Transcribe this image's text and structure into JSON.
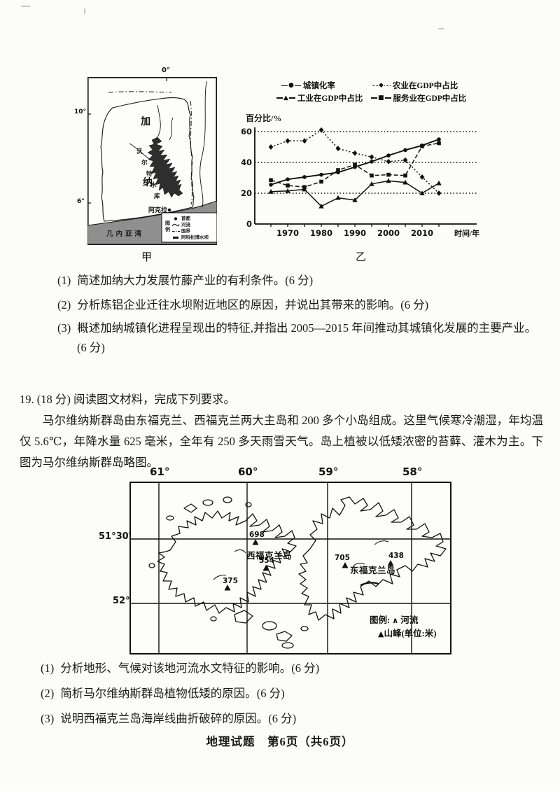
{
  "ghana_map": {
    "caption": "甲",
    "meridian_top": "0°",
    "lat_10": "10°",
    "lat_6": "6°",
    "country_char_1": "加",
    "country_char_2": "纳",
    "lake_chars": [
      "沃",
      "尔",
      "特",
      "水",
      "库"
    ],
    "capital": "阿克拉",
    "gulf": "几内亚湾",
    "legend_title_chars": [
      "图",
      "例"
    ],
    "legend": [
      {
        "symbol": "capital-dot",
        "label": "首都"
      },
      {
        "symbol": "river-line",
        "label": "河流"
      },
      {
        "symbol": "dashdot-line",
        "label": "国界"
      },
      {
        "symbol": "dam-bar",
        "label": "阿科松博水坝"
      }
    ]
  },
  "chart": {
    "caption": "乙",
    "y_axis_title": "百分比/%"
  },
  "chart_data": {
    "type": "line",
    "x": [
      1965,
      1970,
      1975,
      1980,
      1985,
      1990,
      1995,
      2000,
      2005,
      2010,
      2015
    ],
    "x_ticks": [
      1970,
      1980,
      1990,
      2000,
      2010
    ],
    "xlabel": "时间/年",
    "ylabel": "百分比/%",
    "ylim": [
      0,
      65
    ],
    "yticks": [
      0,
      20,
      40,
      60
    ],
    "grid": "dotted horizontal lines at 20,40,60",
    "legend_position": "top",
    "series": [
      {
        "name": "城镇化率",
        "marker": "circle",
        "marker_glyph": "●",
        "line": "solid",
        "values": [
          25.5,
          29,
          30.5,
          32,
          33.5,
          37,
          40.5,
          44.5,
          48,
          51,
          55
        ]
      },
      {
        "name": "农业在GDP中占比",
        "marker": "diamond",
        "marker_glyph": "◆",
        "line": "dotted",
        "values": [
          50,
          54,
          54,
          61,
          49,
          46,
          43.5,
          40.5,
          41.5,
          30.5,
          20
        ]
      },
      {
        "name": "工业在GDP中占比",
        "marker": "triangle",
        "marker_glyph": "▲",
        "line": "solid",
        "values": [
          21,
          21.5,
          22.5,
          11.5,
          17,
          15.5,
          26,
          28,
          27,
          20,
          26.5
        ]
      },
      {
        "name": "服务业在GDP中占比",
        "marker": "square",
        "marker_glyph": "■",
        "line": "dashed",
        "values": [
          28.5,
          25,
          24,
          27.5,
          35,
          38.5,
          31.5,
          32,
          31.5,
          50.5,
          52.5
        ]
      }
    ]
  },
  "q18": {
    "items": [
      {
        "num": "(1)",
        "text": "简述加纳大力发展竹藤产业的有利条件。(6 分)"
      },
      {
        "num": "(2)",
        "text": "分析炼铝企业迁往水坝附近地区的原因，并说出其带来的影响。(6 分)"
      },
      {
        "num": "(3)",
        "text": "概述加纳城镇化进程呈现出的特征,并指出 2005—2015 年间推动其城镇化发展的主要产业。",
        "score": "(6 分)"
      }
    ]
  },
  "q19": {
    "header": "19. (18 分) 阅读图文材料，完成下列要求。",
    "paragraph": "马尔维纳斯群岛由东福克兰、西福克兰两大主岛和 200 多个小岛组成。这里气候寒冷潮湿，年均温仅 5.6℃，年降水量 625 毫米，全年有 250 多天雨雪天气。岛上植被以低矮浓密的苔藓、灌木为主。下图为马尔维纳斯群岛略图。",
    "items": [
      {
        "num": "(1)",
        "text": "分析地形、气候对该地河流水文特征的影响。(6 分)"
      },
      {
        "num": "(2)",
        "text": "简析马尔维纳斯群岛植物低矮的原因。(6 分)"
      },
      {
        "num": "(3)",
        "text": "说明西福克兰岛海岸线曲折破碎的原因。(6 分)"
      }
    ]
  },
  "falkland_map": {
    "lon_labels": [
      "61°",
      "60°",
      "59°",
      "58°"
    ],
    "lat_labels": [
      "51°30′",
      "52°"
    ],
    "islands": [
      {
        "name": "西福克兰岛"
      },
      {
        "name": "东福克兰岛"
      }
    ],
    "peaks": [
      {
        "elev": "698"
      },
      {
        "elev": "554"
      },
      {
        "elev": "375"
      },
      {
        "elev": "705"
      },
      {
        "elev": "438"
      }
    ],
    "legend_prefix": "图例:",
    "river_symbol": "∧",
    "river_label": "河流",
    "peak_symbol": "▲",
    "peak_label": "山峰(单位:米)"
  },
  "footer": "地理试题　第6页（共6页）"
}
